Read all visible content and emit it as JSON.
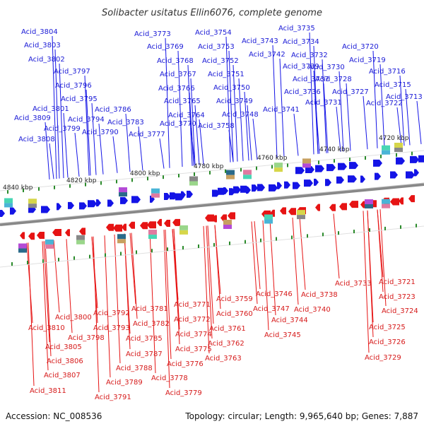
{
  "title": "Solibacter usitatus Ellin6076, complete genome",
  "footer": {
    "accession": "Accession: NC_008536",
    "summary": "Topology: circular; Length: 9,965,640 bp; Genes: 7,887"
  },
  "colors": {
    "forward_strand": "#1414e6",
    "reverse_strand": "#e61414",
    "backbone": "#888888",
    "tick": "#2a8a2a"
  },
  "scale_labels": [
    "4840 kbp",
    "4820 kbp",
    "4800 kbp",
    "4780 kbp",
    "4760 kbp",
    "4740 kbp",
    "4720 kbp"
  ],
  "top_labels": [
    "Acid_3804",
    "Acid_3803",
    "Acid_3802",
    "Acid_3797",
    "Acid_3796",
    "Acid_3795",
    "Acid_3801",
    "Acid_3809",
    "Acid_3799",
    "Acid_3808",
    "Acid_3794",
    "Acid_3790",
    "Acid_3786",
    "Acid_3783",
    "Acid_3773",
    "Acid_3769",
    "Acid_3768",
    "Acid_3767",
    "Acid_3766",
    "Acid_3765",
    "Acid_3764",
    "Acid_3770",
    "Acid_3777",
    "Acid_3754",
    "Acid_3753",
    "Acid_3752",
    "Acid_3751",
    "Acid_3750",
    "Acid_3749",
    "Acid_3748",
    "Acid_3758",
    "Acid_3743",
    "Acid_3742",
    "Acid_3735",
    "Acid_3734",
    "Acid_3732",
    "Acid_3739",
    "Acid_3730",
    "Acid_3737",
    "Acid_3728",
    "Acid_3736",
    "Acid_3727",
    "Acid_3731",
    "Acid_3741",
    "Acid_3722",
    "Acid_3720",
    "Acid_3719",
    "Acid_3716",
    "Acid_3715",
    "Acid_3713"
  ],
  "bottom_labels": [
    "Acid_3800",
    "Acid_3810",
    "Acid_3798",
    "Acid_3805",
    "Acid_3806",
    "Acid_3807",
    "Acid_3811",
    "Acid_3792",
    "Acid_3793",
    "Acid_3787",
    "Acid_3788",
    "Acid_3789",
    "Acid_3791",
    "Acid_3781",
    "Acid_3782",
    "Acid_3785",
    "Acid_3778",
    "Acid_3779",
    "Acid_3771",
    "Acid_3772",
    "Acid_3774",
    "Acid_3775",
    "Acid_3776",
    "Acid_3759",
    "Acid_3760",
    "Acid_3761",
    "Acid_3762",
    "Acid_3763",
    "Acid_3746",
    "Acid_3747",
    "Acid_3744",
    "Acid_3745",
    "Acid_3738",
    "Acid_3740",
    "Acid_3733",
    "Acid_3721",
    "Acid_3723",
    "Acid_3724",
    "Acid_3725",
    "Acid_3726",
    "Acid_3729"
  ]
}
